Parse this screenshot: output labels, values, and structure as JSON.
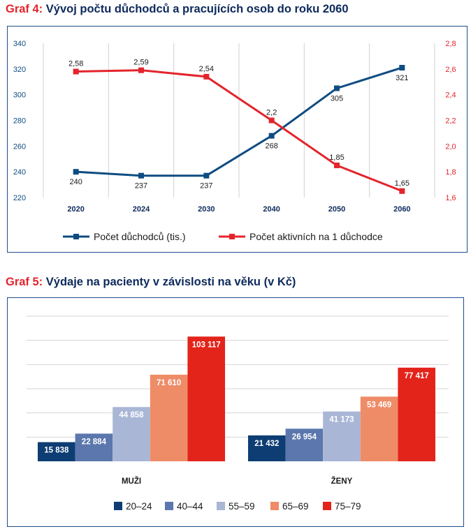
{
  "chart1": {
    "prefix": "Graf 4:",
    "title": "Vývoj počtu důchodců a pracujících osob do roku 2060",
    "colors": {
      "left": "#0f4c81",
      "right": "#e3242b"
    },
    "chart_data": {
      "type": "line",
      "categories": [
        "2020",
        "2024",
        "2030",
        "2040",
        "2050",
        "2060"
      ],
      "series": [
        {
          "name": "Počet důchodců (tis.)",
          "axis": "left",
          "values": [
            240,
            237,
            237,
            268,
            305,
            321
          ],
          "labels": [
            "240",
            "237",
            "237",
            "268",
            "305",
            "321"
          ]
        },
        {
          "name": "Počet aktivních na 1 důchodce",
          "axis": "right",
          "values": [
            2.58,
            2.59,
            2.54,
            2.2,
            1.85,
            1.65
          ],
          "labels": [
            "2,58",
            "2,59",
            "2,54",
            "2,2",
            "1,85",
            "1,65"
          ]
        }
      ],
      "yleft": {
        "min": 220,
        "max": 340,
        "ticks": [
          "220",
          "240",
          "260",
          "280",
          "300",
          "320",
          "340"
        ]
      },
      "yright": {
        "min": 1.6,
        "max": 2.8,
        "ticks": [
          "1,6",
          "1,8",
          "2,0",
          "2,2",
          "2,4",
          "2,6",
          "2,8"
        ]
      },
      "grid": "vertical",
      "legend": "bottom"
    }
  },
  "chart2": {
    "prefix": "Graf 5:",
    "title": "Výdaje na pacienty v závislosti na věku (v Kč)",
    "chart_data": {
      "type": "bar",
      "categories": [
        "MUŽI",
        "ŽENY"
      ],
      "series": [
        {
          "name": "20–24",
          "color": "#0d3d73",
          "values": [
            15838,
            21432
          ],
          "labels": [
            "15 838",
            "21 432"
          ]
        },
        {
          "name": "40–44",
          "color": "#5b77ad",
          "values": [
            22884,
            26954
          ],
          "labels": [
            "22 884",
            "26 954"
          ]
        },
        {
          "name": "55–59",
          "color": "#a9b6d6",
          "values": [
            44858,
            41173
          ],
          "labels": [
            "44 858",
            "41 173"
          ]
        },
        {
          "name": "65–69",
          "color": "#ef8c68",
          "values": [
            71610,
            53469
          ],
          "labels": [
            "71 610",
            "53 469"
          ]
        },
        {
          "name": "75–79",
          "color": "#e3241b",
          "values": [
            103117,
            77417
          ],
          "labels": [
            "103 117",
            "77 417"
          ]
        }
      ],
      "ylim": [
        0,
        120000
      ],
      "grid": "horizontal",
      "legend": "bottom"
    }
  }
}
